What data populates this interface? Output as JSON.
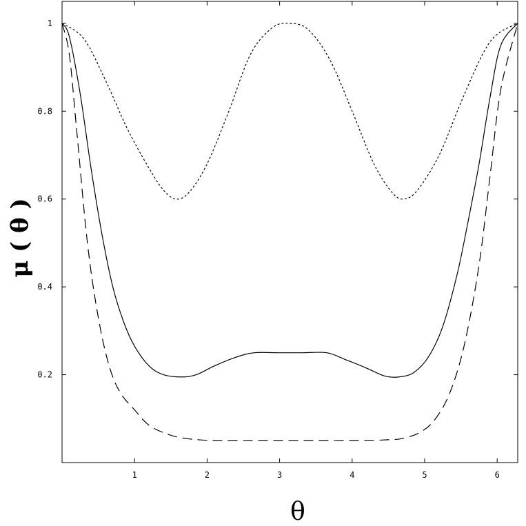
{
  "chart_data": {
    "type": "line",
    "xlabel": "θ",
    "ylabel": "μ ( θ )",
    "xlim": [
      0,
      6.2832
    ],
    "ylim": [
      0,
      1.05
    ],
    "x_ticks": [
      1,
      2,
      3,
      4,
      5,
      6
    ],
    "x_tick_labels": [
      "1",
      "2",
      "3",
      "4",
      "5",
      "6"
    ],
    "y_ticks": [
      0.2,
      0.4,
      0.6,
      0.8,
      1
    ],
    "y_tick_labels": [
      "0.2",
      "0.4",
      "0.6",
      "0.8",
      "1"
    ],
    "grid": false,
    "legend": "none",
    "series": [
      {
        "style": "short-dashed",
        "color": "#000000",
        "x": [
          0,
          0.3,
          0.6,
          0.9,
          1.2,
          1.4,
          1.5708,
          1.75,
          2.0,
          2.3,
          2.6,
          2.9,
          3.1416,
          3.4,
          3.7,
          4.0,
          4.3,
          4.55,
          4.7124,
          4.9,
          5.2,
          5.5,
          5.8,
          6.0,
          6.2832
        ],
        "y": [
          1.0,
          0.965,
          0.87,
          0.76,
          0.67,
          0.62,
          0.6,
          0.615,
          0.68,
          0.8,
          0.93,
          0.99,
          1.0,
          0.985,
          0.915,
          0.8,
          0.68,
          0.615,
          0.6,
          0.62,
          0.7,
          0.82,
          0.93,
          0.975,
          1.0
        ]
      },
      {
        "style": "solid",
        "color": "#000000",
        "x": [
          0,
          0.1,
          0.25,
          0.4,
          0.55,
          0.7,
          0.85,
          1.0,
          1.2,
          1.4,
          1.65,
          1.85,
          2.1,
          2.4,
          2.65,
          3.0,
          3.3,
          3.65,
          3.9,
          4.2,
          4.45,
          4.65,
          4.85,
          5.05,
          5.25,
          5.45,
          5.6,
          5.75,
          5.9,
          6.05,
          6.2832
        ],
        "y": [
          1.0,
          0.97,
          0.84,
          0.67,
          0.52,
          0.4,
          0.32,
          0.265,
          0.22,
          0.2,
          0.195,
          0.2,
          0.22,
          0.24,
          0.25,
          0.25,
          0.25,
          0.25,
          0.235,
          0.215,
          0.197,
          0.195,
          0.205,
          0.24,
          0.31,
          0.43,
          0.55,
          0.68,
          0.83,
          0.95,
          1.0
        ]
      },
      {
        "style": "long-dashed",
        "color": "#000000",
        "x": [
          0,
          0.1,
          0.2,
          0.35,
          0.5,
          0.65,
          0.8,
          1.0,
          1.2,
          1.45,
          1.7,
          2.1,
          2.6,
          3.1,
          3.6,
          4.1,
          4.5,
          4.7,
          4.95,
          5.15,
          5.35,
          5.55,
          5.75,
          5.9,
          6.05,
          6.2832
        ],
        "y": [
          1.0,
          0.93,
          0.76,
          0.5,
          0.33,
          0.22,
          0.16,
          0.12,
          0.085,
          0.065,
          0.055,
          0.05,
          0.05,
          0.05,
          0.05,
          0.05,
          0.052,
          0.055,
          0.07,
          0.1,
          0.16,
          0.27,
          0.45,
          0.65,
          0.85,
          1.0
        ]
      }
    ]
  }
}
